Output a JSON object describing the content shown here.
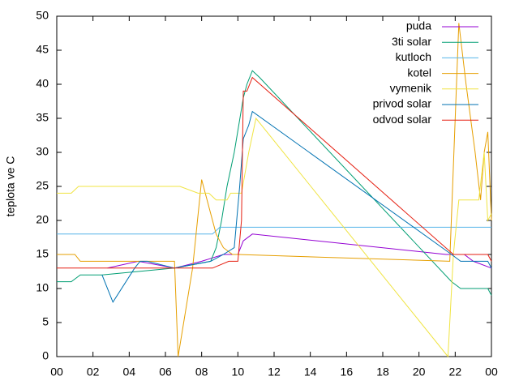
{
  "chart_data": {
    "type": "line",
    "ylabel": "teplota ve C",
    "xlim": [
      0,
      24
    ],
    "xticks": [
      {
        "value": 0,
        "label": "00"
      },
      {
        "value": 2,
        "label": "02"
      },
      {
        "value": 4,
        "label": "04"
      },
      {
        "value": 6,
        "label": "06"
      },
      {
        "value": 8,
        "label": "08"
      },
      10,
      12,
      14,
      16,
      18,
      20,
      22,
      {
        "value": 24,
        "label": "00"
      }
    ],
    "ylim": [
      0,
      50
    ],
    "yticks": [
      0,
      5,
      10,
      15,
      20,
      25,
      30,
      35,
      40,
      45,
      50
    ],
    "legend": "top-right",
    "series": [
      {
        "name": "puda",
        "color": "#9400d3",
        "x": [
          2.8,
          4.5,
          6.5,
          8.0,
          9.2,
          10.0,
          10.3,
          10.8,
          21.5,
          22.5,
          23.0,
          24.0
        ],
        "values": [
          13,
          14,
          13,
          14,
          15,
          15,
          17,
          18,
          15,
          15,
          14,
          13
        ]
      },
      {
        "name": "3ti solar",
        "color": "#009e73",
        "x": [
          0,
          0.8,
          1.3,
          2.5,
          6.5,
          8.5,
          8.8,
          9.1,
          9.4,
          9.8,
          10.3,
          10.5,
          10.8,
          11.2,
          21.8,
          22.3,
          23.8,
          24.0
        ],
        "values": [
          11,
          11,
          12,
          12,
          13,
          14,
          16,
          20,
          25,
          30,
          38,
          40,
          42,
          41,
          11,
          10,
          10,
          9
        ]
      },
      {
        "name": "kutloch",
        "color": "#56b4e9",
        "x": [
          0,
          8.6,
          9.0,
          24.0
        ],
        "values": [
          18,
          18,
          19,
          19
        ]
      },
      {
        "name": "kotel",
        "color": "#e69f00",
        "x": [
          0,
          1.0,
          1.3,
          6.5,
          6.7,
          7.5,
          8.0,
          8.4,
          8.8,
          9.2,
          9.7,
          10.0,
          21.7,
          22.2,
          22.6,
          23.1,
          23.4,
          23.6,
          23.8,
          24.0
        ],
        "values": [
          15,
          15,
          14,
          14,
          0,
          13,
          26,
          22,
          18,
          16,
          15,
          15,
          14,
          49,
          40,
          30,
          23,
          30,
          33,
          20
        ]
      },
      {
        "name": "vymenik",
        "color": "#f0e442",
        "x": [
          0,
          0.8,
          1.2,
          6.8,
          7.8,
          8.4,
          8.8,
          9.4,
          9.6,
          10.2,
          10.6,
          11.0,
          21.6,
          21.9,
          22.2,
          23.3,
          23.6,
          23.8,
          24.0
        ],
        "values": [
          24,
          24,
          25,
          25,
          24,
          24,
          23,
          23,
          24,
          24,
          30,
          35,
          0,
          15,
          23,
          23,
          30,
          20,
          21
        ]
      },
      {
        "name": "privod solar",
        "color": "#0072b2",
        "x": [
          2.5,
          3.1,
          4.3,
          4.6,
          5.0,
          6.5,
          8.5,
          9.2,
          9.8,
          10.1,
          10.3,
          10.6,
          10.8,
          21.8,
          22.3,
          23.8,
          24.0
        ],
        "values": [
          12,
          8,
          13,
          14,
          14,
          13,
          14,
          15,
          16,
          25,
          32,
          34,
          36,
          15,
          14,
          14,
          13
        ]
      },
      {
        "name": "odvod solar",
        "color": "#e51e10",
        "x": [
          0,
          8.6,
          9.5,
          10.0,
          10.2,
          10.3,
          10.5,
          10.8,
          21.9,
          23.8,
          24.0
        ],
        "values": [
          13,
          13,
          14,
          14,
          20,
          39,
          39,
          41,
          15,
          15,
          14
        ]
      }
    ]
  }
}
